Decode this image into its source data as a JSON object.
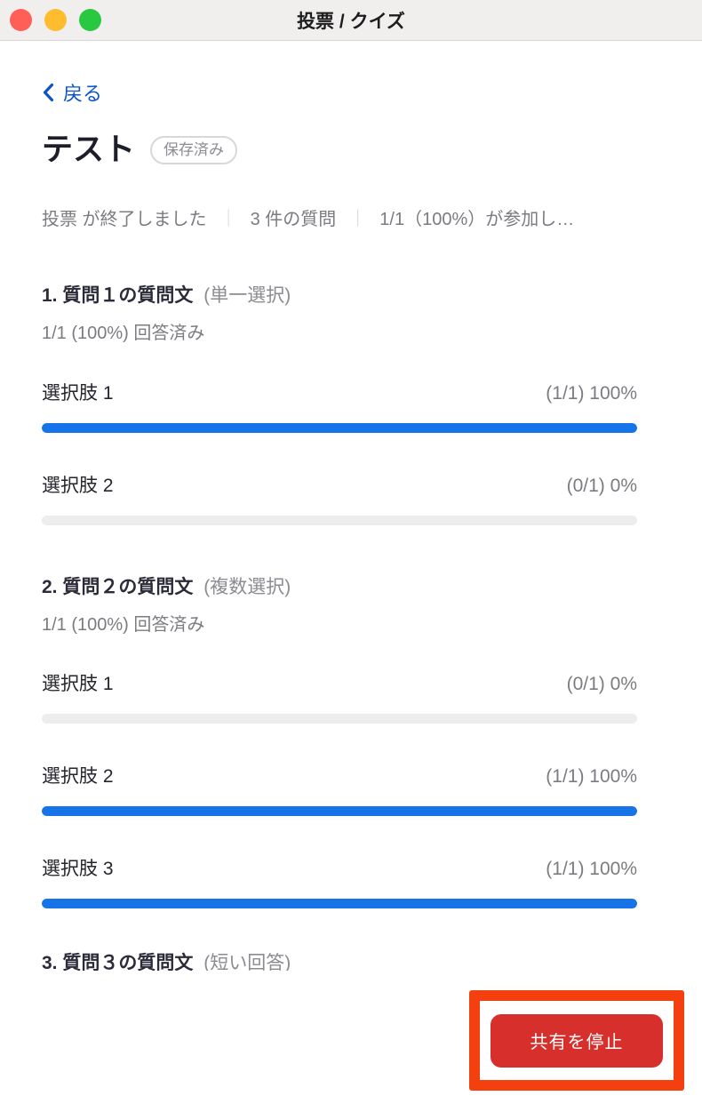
{
  "window": {
    "title": "投票 / クイズ"
  },
  "traffic_lights": {
    "close_color": "#ff5f57",
    "minimize_color": "#febc2e",
    "zoom_color": "#28c840"
  },
  "back": {
    "label": "戻る"
  },
  "poll": {
    "title": "テスト",
    "badge": "保存済み"
  },
  "status": {
    "ended": "投票 が終了しました",
    "question_count": "3 件の質問",
    "participation": "1/1（100%）が参加し…",
    "separator": "｜"
  },
  "questions": [
    {
      "title": "1. 質問１の質問文",
      "type": "(単一選択)",
      "answered": "1/1 (100%) 回答済み",
      "options": [
        {
          "label": "選択肢 1",
          "value": "(1/1) 100%",
          "percent": 100
        },
        {
          "label": "選択肢 2",
          "value": "(0/1) 0%",
          "percent": 0
        }
      ]
    },
    {
      "title": "2. 質問２の質問文",
      "type": "(複数選択)",
      "answered": "1/1 (100%) 回答済み",
      "options": [
        {
          "label": "選択肢 1",
          "value": "(0/1) 0%",
          "percent": 0
        },
        {
          "label": "選択肢 2",
          "value": "(1/1) 100%",
          "percent": 100
        },
        {
          "label": "選択肢 3",
          "value": "(1/1) 100%",
          "percent": 100
        }
      ]
    },
    {
      "title": "3. 質問３の質問文",
      "type": "(短い回答)",
      "answered": "",
      "options": []
    }
  ],
  "footer": {
    "stop_share_label": "共有を停止"
  },
  "colors": {
    "accent_blue": "#1774e8",
    "link_blue": "#0d54c6",
    "bar_track": "#ededed",
    "button_red": "#d62f2c",
    "annotation_red": "#f4400e"
  }
}
